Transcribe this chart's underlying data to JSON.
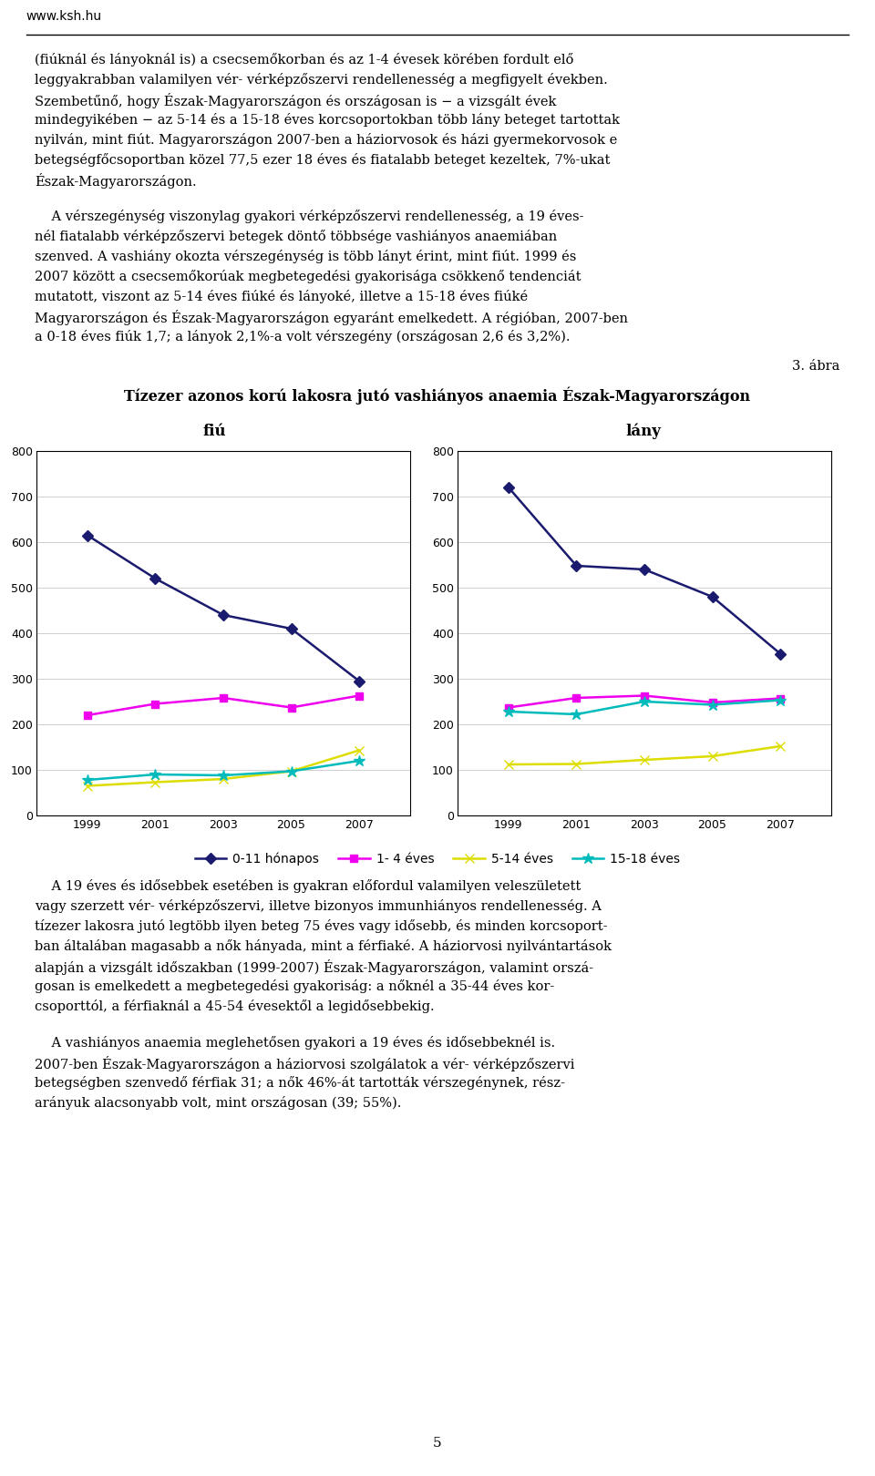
{
  "title_figure": "3. ábra",
  "chart_title": "Tízezer azonos korú lakosra jutó vashiányos anaemia Észak-Magyarországon",
  "subtitle_fiu": "fiú",
  "subtitle_lany": "lány",
  "x_values": [
    1999,
    2001,
    2003,
    2005,
    2007
  ],
  "fiu": {
    "series_0_11": [
      615,
      520,
      440,
      410,
      295
    ],
    "series_1_4": [
      220,
      245,
      258,
      237,
      263
    ],
    "series_5_14": [
      65,
      73,
      80,
      97,
      143
    ],
    "series_15_18": [
      78,
      90,
      88,
      97,
      120
    ]
  },
  "lany": {
    "series_0_11": [
      720,
      548,
      540,
      480,
      355
    ],
    "series_1_4": [
      237,
      258,
      263,
      248,
      257
    ],
    "series_5_14": [
      112,
      113,
      122,
      130,
      152
    ],
    "series_15_18": [
      228,
      222,
      250,
      243,
      253
    ]
  },
  "colors": {
    "c0_11": "#1A1A6E",
    "c1_4": "#EE00EE",
    "c5_14": "#DDDD00",
    "c15_18": "#00BBBB"
  },
  "ylim": [
    0,
    800
  ],
  "yticks": [
    0,
    100,
    200,
    300,
    400,
    500,
    600,
    700,
    800
  ],
  "legend_labels": [
    "0-11 hónapos",
    "1- 4 éves",
    "5-14 éves",
    "15-18 éves"
  ],
  "header_url": "www.ksh.hu",
  "background_color": "#FFFFFF",
  "page_number": "5",
  "text_top_lines": [
    "(fiúknál és lányoknál is) a csecsemőkorban és az 1-4 évesek körében fordult elő",
    "leggyakrabban valamilyen vér- vérképzőszervi rendellenesség a megfigyelt években.",
    "Szembetűnő, hogy Észak-Magyarországon és országosan is − a vizsgált évek",
    "mindegyikében − az 5-14 és a 15-18 éves korcsoportokban több lány beteget tartottak",
    "nyilván, mint fiút. Magyarországon 2007-ben a háziorvosok és házi gyermekorvosok e",
    "betegségfőcsoportban közel 77,5 ezer 18 éves és fiatalabb beteget kezeltek, 7%-ukat",
    "Észak-Magyarországon."
  ],
  "text_middle_lines": [
    "    A vérszegénység viszonylag gyakori vérképzőszervi rendellenesség, a 19 éves-",
    "nél fiatalabb vérképzőszervi betegek döntő többsége vashiányos anaemiában",
    "szenved. A vashiány okozta vérszegénység is több lányt érint, mint fiút. 1999 és",
    "2007 között a csecsemőkorúak megbetegedési gyakorisága csökkenő tendenciát",
    "mutatott, viszont az 5-14 éves fiúké és lányoké, illetve a 15-18 éves fiúké",
    "Magyarországon és Észak-Magyarországon egyaránt emelkedett. A régióban, 2007-ben",
    "a 0-18 éves fiúk 1,7; a lányok 2,1%-a volt vérszegény (országosan 2,6 és 3,2%)."
  ],
  "text_bottom1_lines": [
    "    A 19 éves és idősebbek esetében is gyakran előfordul valamilyen veleszületett",
    "vagy szerzett vér- vérképzőszervi, illetve bizonyos immunhiányos rendellenesség. A",
    "tízezer lakosra jutó legtöbb ilyen beteg 75 éves vagy idősebb, és minden korcsoport-",
    "ban általában magasabb a nők hányada, mint a férfiaké. A háziorvosi nyilvántartások",
    "alapján a vizsgált időszakban (1999-2007) Észak-Magyarországon, valamint orszá-",
    "gosan is emelkedett a megbetegedési gyakoriság: a nőknél a 35-44 éves kor-",
    "csoporttól, a férfiaknál a 45-54 évesektől a legidősebbekig."
  ],
  "text_bottom2_lines": [
    "    A vashiányos anaemia meglehetősen gyakori a 19 éves és idősebbeknél is.",
    "2007-ben Észak-Magyarországon a háziorvosi szolgálatok a vér- vérképzőszervi",
    "betegségben szenvedő férfiak 31; a nők 46%-át tartották vérszegénynek, rész-",
    "arányuk alacsonyabb volt, mint országosan (39; 55%)."
  ]
}
